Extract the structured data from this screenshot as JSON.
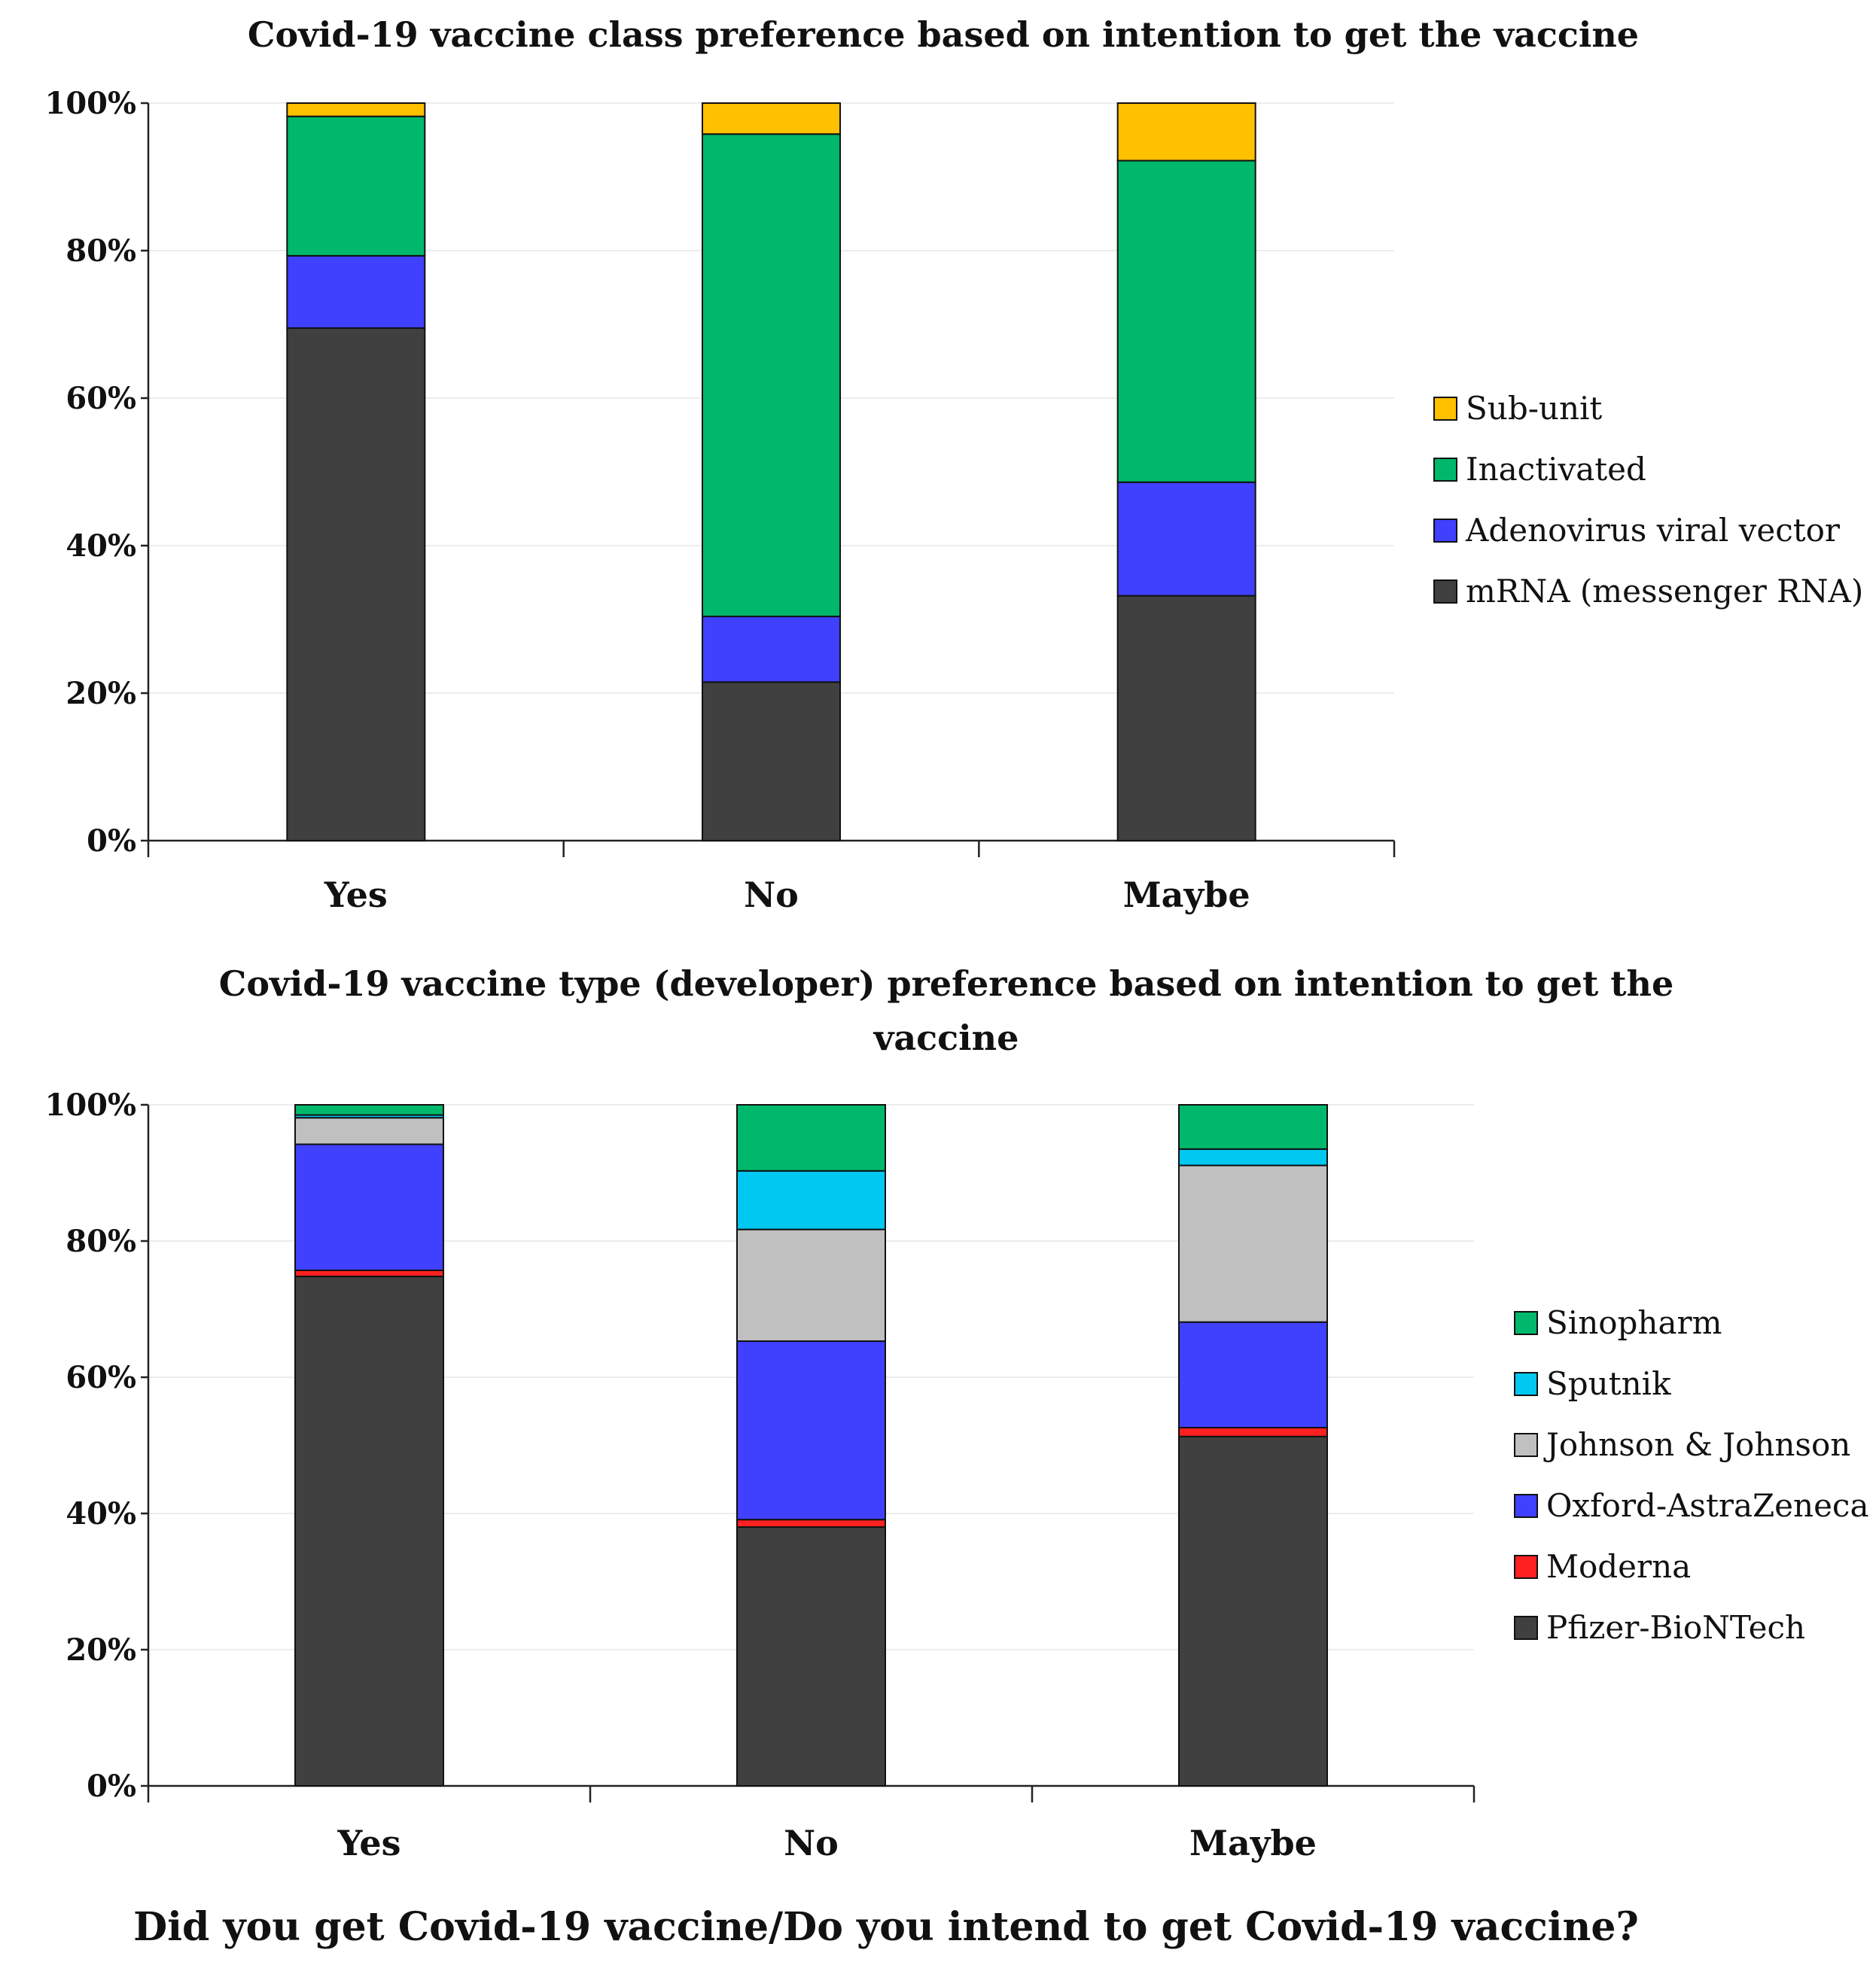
{
  "chart_data": [
    {
      "type": "bar",
      "stacked": true,
      "title": "Covid-19 vaccine class preference based on intention to get the vaccine",
      "categories": [
        "Yes",
        "No",
        "Maybe"
      ],
      "y_ticks": [
        "0%",
        "20%",
        "40%",
        "60%",
        "80%",
        "100%"
      ],
      "ylim": [
        0,
        100
      ],
      "legend_position": "right",
      "series": [
        {
          "name": "mRNA (messenger RNA)",
          "color": "#404040",
          "values": [
            69.5,
            21.5,
            33.2
          ]
        },
        {
          "name": "Adenovirus viral vector",
          "color": "#4040ff",
          "values": [
            9.8,
            8.9,
            15.4
          ]
        },
        {
          "name": "Inactivated",
          "color": "#00b86b",
          "values": [
            18.9,
            65.4,
            43.6
          ]
        },
        {
          "name": "Sub-unit",
          "color": "#ffc000",
          "values": [
            1.8,
            4.2,
            7.8
          ]
        }
      ]
    },
    {
      "type": "bar",
      "stacked": true,
      "title": "Covid-19 vaccine type (developer) preference based on intention to get the vaccine",
      "categories": [
        "Yes",
        "No",
        "Maybe"
      ],
      "y_ticks": [
        "0%",
        "20%",
        "40%",
        "60%",
        "80%",
        "100%"
      ],
      "ylim": [
        0,
        100
      ],
      "legend_position": "right",
      "series": [
        {
          "name": "Pfizer-BioNTech",
          "color": "#404040",
          "values": [
            74.8,
            38.0,
            51.3
          ]
        },
        {
          "name": "Moderna",
          "color": "#ff2020",
          "values": [
            0.9,
            1.1,
            1.3
          ]
        },
        {
          "name": "Oxford-AstraZeneca",
          "color": "#4040ff",
          "values": [
            18.5,
            26.2,
            15.5
          ]
        },
        {
          "name": "Johnson & Johnson",
          "color": "#c0c0c0",
          "values": [
            3.9,
            16.4,
            23.0
          ]
        },
        {
          "name": "Sputnik",
          "color": "#00c8f0",
          "values": [
            0.4,
            8.6,
            2.4
          ]
        },
        {
          "name": "Sinopharm",
          "color": "#00b86b",
          "values": [
            1.5,
            9.7,
            6.5
          ]
        }
      ]
    }
  ],
  "shared_xlabel": "Did you get Covid-19 vaccine/Do you intend to get Covid-19 vaccine?"
}
